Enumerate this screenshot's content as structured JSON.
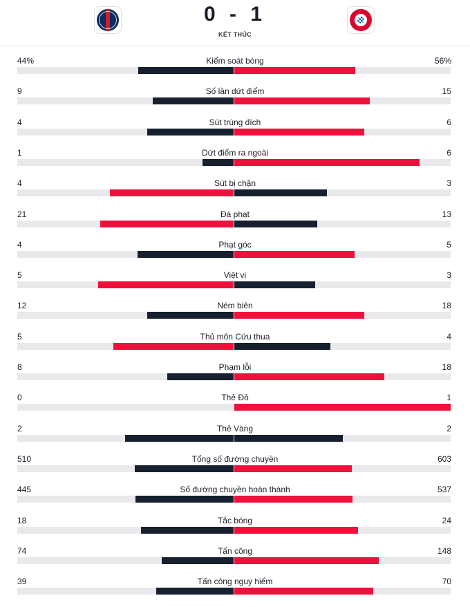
{
  "match": {
    "home_team_icon": "psg-crest",
    "away_team_icon": "bayern-crest",
    "score": "0 - 1",
    "status": "KẾT THÚC"
  },
  "colors": {
    "leader": "#f0103c",
    "trailer": "#16202e",
    "track": "#e9e9ec"
  },
  "stats": [
    {
      "label": "Kiểm soát bóng",
      "home": "44%",
      "away": "56%",
      "home_frac": 0.44,
      "away_frac": 0.56
    },
    {
      "label": "Số lần dứt điểm",
      "home": "9",
      "away": "15",
      "home_frac": 0.375,
      "away_frac": 0.625
    },
    {
      "label": "Sút trúng đích",
      "home": "4",
      "away": "6",
      "home_frac": 0.4,
      "away_frac": 0.6
    },
    {
      "label": "Dứt điểm ra ngoài",
      "home": "1",
      "away": "6",
      "home_frac": 0.143,
      "away_frac": 0.857
    },
    {
      "label": "Sút bị chặn",
      "home": "4",
      "away": "3",
      "home_frac": 0.571,
      "away_frac": 0.429
    },
    {
      "label": "Đá phạt",
      "home": "21",
      "away": "13",
      "home_frac": 0.618,
      "away_frac": 0.382
    },
    {
      "label": "Phạt góc",
      "home": "4",
      "away": "5",
      "home_frac": 0.444,
      "away_frac": 0.556
    },
    {
      "label": "Việt vị",
      "home": "5",
      "away": "3",
      "home_frac": 0.625,
      "away_frac": 0.375
    },
    {
      "label": "Ném biên",
      "home": "12",
      "away": "18",
      "home_frac": 0.4,
      "away_frac": 0.6
    },
    {
      "label": "Thủ môn Cứu thua",
      "home": "5",
      "away": "4",
      "home_frac": 0.556,
      "away_frac": 0.444
    },
    {
      "label": "Phạm lỗi",
      "home": "8",
      "away": "18",
      "home_frac": 0.308,
      "away_frac": 0.692
    },
    {
      "label": "Thẻ Đỏ",
      "home": "0",
      "away": "1",
      "home_frac": 0.0,
      "away_frac": 1.0
    },
    {
      "label": "Thẻ Vàng",
      "home": "2",
      "away": "2",
      "home_frac": 0.5,
      "away_frac": 0.5
    },
    {
      "label": "Tổng số đường chuyền",
      "home": "510",
      "away": "603",
      "home_frac": 0.458,
      "away_frac": 0.542
    },
    {
      "label": "Số đường chuyền hoàn thành",
      "home": "445",
      "away": "537",
      "home_frac": 0.453,
      "away_frac": 0.547
    },
    {
      "label": "Tắc bóng",
      "home": "18",
      "away": "24",
      "home_frac": 0.429,
      "away_frac": 0.571
    },
    {
      "label": "Tấn công",
      "home": "74",
      "away": "148",
      "home_frac": 0.333,
      "away_frac": 0.667
    },
    {
      "label": "Tấn công nguy hiểm",
      "home": "39",
      "away": "70",
      "home_frac": 0.358,
      "away_frac": 0.642
    }
  ]
}
